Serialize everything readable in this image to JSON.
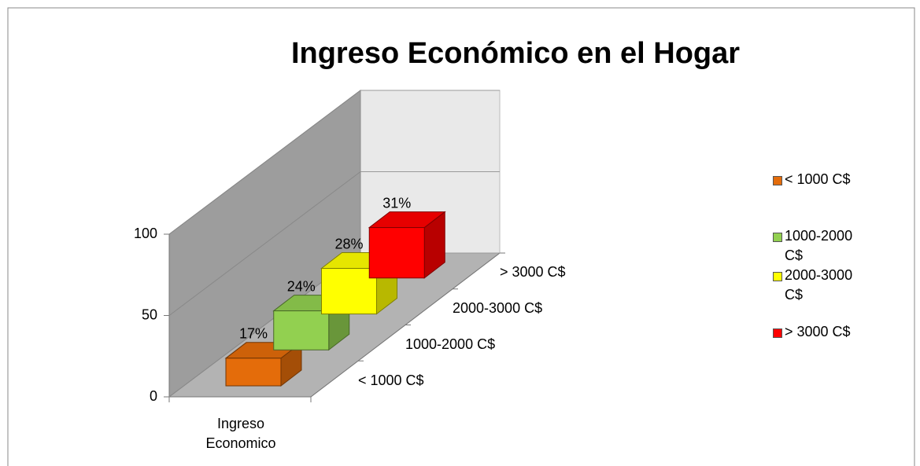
{
  "chart_data": {
    "type": "bar3d",
    "title": "Ingreso Económico en el Hogar",
    "categories": [
      "Ingreso Economico"
    ],
    "series": [
      {
        "name": "< 1000 C$",
        "color": "#e46c0a",
        "values": [
          17
        ],
        "value_labels": [
          "17%"
        ]
      },
      {
        "name": "1000-2000 C$",
        "color": "#92d050",
        "values": [
          24
        ],
        "value_labels": [
          "24%"
        ]
      },
      {
        "name": "2000-3000 C$",
        "color": "#ffff00",
        "values": [
          28
        ],
        "value_labels": [
          "28%"
        ]
      },
      {
        "name": "> 3000 C$",
        "color": "#ff0000",
        "values": [
          31
        ],
        "value_labels": [
          "31%"
        ]
      }
    ],
    "ylim": [
      0,
      100
    ],
    "yticks": [
      0,
      50,
      100
    ],
    "grid": true,
    "legend": "right"
  }
}
